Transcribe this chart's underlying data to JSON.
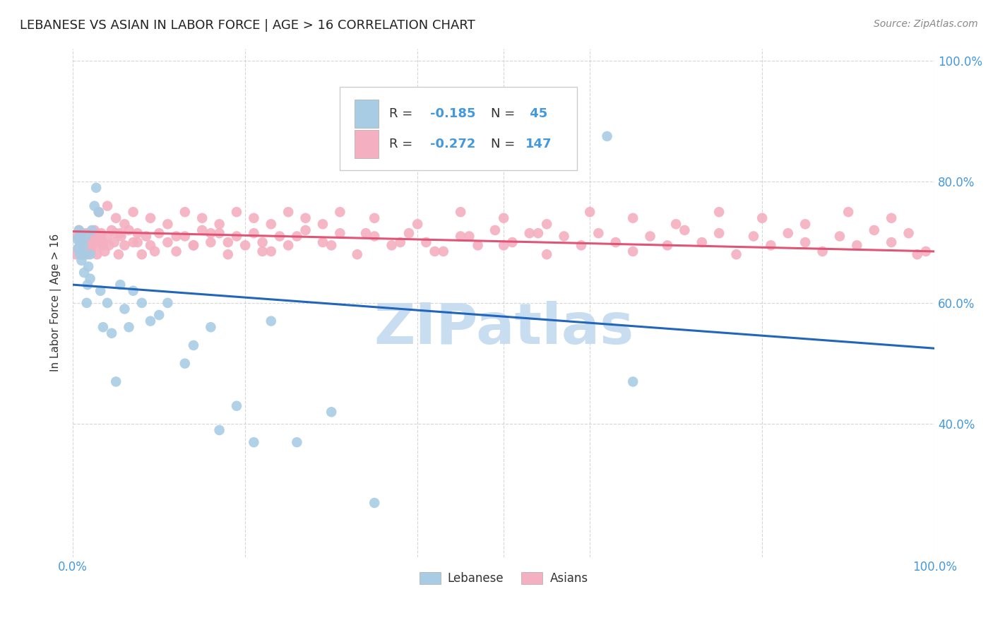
{
  "title": "LEBANESE VS ASIAN IN LABOR FORCE | AGE > 16 CORRELATION CHART",
  "source_text": "Source: ZipAtlas.com",
  "ylabel": "In Labor Force | Age > 16",
  "legend_label_blue": "Lebanese",
  "legend_label_pink": "Asians",
  "R_blue": -0.185,
  "N_blue": 45,
  "R_pink": -0.272,
  "N_pink": 147,
  "xlim": [
    0.0,
    1.0
  ],
  "ylim": [
    0.18,
    1.02
  ],
  "color_blue": "#a8cce4",
  "color_pink": "#f4afc0",
  "line_color_blue": "#2266bb",
  "line_color_pink": "#e05575",
  "background_color": "#ffffff",
  "plot_bg_color": "#ffffff",
  "grid_color": "#cccccc",
  "watermark_color": "#c8ddf0",
  "title_color": "#222222",
  "axis_label_color": "#4499dd",
  "legend_text_color": "#4499dd",
  "blue_line_y0": 0.63,
  "blue_line_y1": 0.525,
  "pink_line_y0": 0.718,
  "pink_line_y1": 0.685,
  "blue_x": [
    0.005,
    0.006,
    0.007,
    0.008,
    0.009,
    0.01,
    0.01,
    0.012,
    0.013,
    0.014,
    0.015,
    0.016,
    0.017,
    0.018,
    0.02,
    0.02,
    0.022,
    0.025,
    0.027,
    0.03,
    0.032,
    0.035,
    0.04,
    0.045,
    0.05,
    0.055,
    0.06,
    0.065,
    0.07,
    0.08,
    0.09,
    0.1,
    0.11,
    0.13,
    0.14,
    0.16,
    0.17,
    0.19,
    0.21,
    0.23,
    0.26,
    0.3,
    0.62,
    0.65,
    0.35
  ],
  "blue_y": [
    0.705,
    0.69,
    0.72,
    0.68,
    0.7,
    0.67,
    0.715,
    0.695,
    0.65,
    0.68,
    0.71,
    0.6,
    0.63,
    0.66,
    0.64,
    0.68,
    0.72,
    0.76,
    0.79,
    0.75,
    0.62,
    0.56,
    0.6,
    0.55,
    0.47,
    0.63,
    0.59,
    0.56,
    0.62,
    0.6,
    0.57,
    0.58,
    0.6,
    0.5,
    0.53,
    0.56,
    0.39,
    0.43,
    0.37,
    0.57,
    0.37,
    0.42,
    0.875,
    0.47,
    0.27
  ],
  "pink_x": [
    0.003,
    0.005,
    0.006,
    0.007,
    0.008,
    0.009,
    0.01,
    0.01,
    0.011,
    0.012,
    0.013,
    0.014,
    0.015,
    0.016,
    0.017,
    0.018,
    0.019,
    0.02,
    0.02,
    0.021,
    0.022,
    0.023,
    0.025,
    0.026,
    0.027,
    0.028,
    0.03,
    0.031,
    0.033,
    0.035,
    0.037,
    0.04,
    0.042,
    0.045,
    0.048,
    0.05,
    0.053,
    0.056,
    0.06,
    0.065,
    0.07,
    0.075,
    0.08,
    0.085,
    0.09,
    0.1,
    0.11,
    0.12,
    0.13,
    0.14,
    0.15,
    0.16,
    0.17,
    0.18,
    0.19,
    0.2,
    0.21,
    0.22,
    0.23,
    0.24,
    0.25,
    0.27,
    0.29,
    0.31,
    0.33,
    0.35,
    0.37,
    0.39,
    0.41,
    0.43,
    0.45,
    0.47,
    0.49,
    0.51,
    0.53,
    0.55,
    0.57,
    0.59,
    0.61,
    0.63,
    0.65,
    0.67,
    0.69,
    0.71,
    0.73,
    0.75,
    0.77,
    0.79,
    0.81,
    0.83,
    0.85,
    0.87,
    0.89,
    0.91,
    0.93,
    0.95,
    0.97,
    0.98,
    0.03,
    0.04,
    0.05,
    0.06,
    0.07,
    0.09,
    0.11,
    0.13,
    0.15,
    0.17,
    0.19,
    0.21,
    0.23,
    0.25,
    0.27,
    0.29,
    0.31,
    0.35,
    0.4,
    0.45,
    0.5,
    0.55,
    0.6,
    0.65,
    0.7,
    0.75,
    0.8,
    0.85,
    0.9,
    0.95,
    0.99,
    0.025,
    0.035,
    0.055,
    0.075,
    0.095,
    0.12,
    0.14,
    0.16,
    0.18,
    0.22,
    0.26,
    0.3,
    0.34,
    0.38,
    0.42,
    0.46,
    0.5,
    0.54
  ],
  "pink_y": [
    0.68,
    0.71,
    0.69,
    0.72,
    0.7,
    0.68,
    0.715,
    0.695,
    0.7,
    0.68,
    0.71,
    0.69,
    0.715,
    0.7,
    0.68,
    0.71,
    0.695,
    0.715,
    0.7,
    0.685,
    0.71,
    0.695,
    0.72,
    0.7,
    0.715,
    0.68,
    0.71,
    0.695,
    0.715,
    0.7,
    0.685,
    0.71,
    0.695,
    0.72,
    0.7,
    0.715,
    0.68,
    0.71,
    0.695,
    0.72,
    0.7,
    0.715,
    0.68,
    0.71,
    0.695,
    0.715,
    0.7,
    0.685,
    0.71,
    0.695,
    0.72,
    0.7,
    0.715,
    0.68,
    0.71,
    0.695,
    0.715,
    0.7,
    0.685,
    0.71,
    0.695,
    0.72,
    0.7,
    0.715,
    0.68,
    0.71,
    0.695,
    0.715,
    0.7,
    0.685,
    0.71,
    0.695,
    0.72,
    0.7,
    0.715,
    0.68,
    0.71,
    0.695,
    0.715,
    0.7,
    0.685,
    0.71,
    0.695,
    0.72,
    0.7,
    0.715,
    0.68,
    0.71,
    0.695,
    0.715,
    0.7,
    0.685,
    0.71,
    0.695,
    0.72,
    0.7,
    0.715,
    0.68,
    0.75,
    0.76,
    0.74,
    0.73,
    0.75,
    0.74,
    0.73,
    0.75,
    0.74,
    0.73,
    0.75,
    0.74,
    0.73,
    0.75,
    0.74,
    0.73,
    0.75,
    0.74,
    0.73,
    0.75,
    0.74,
    0.73,
    0.75,
    0.74,
    0.73,
    0.75,
    0.74,
    0.73,
    0.75,
    0.74,
    0.685,
    0.71,
    0.695,
    0.715,
    0.7,
    0.685,
    0.71,
    0.695,
    0.715,
    0.7,
    0.685,
    0.71,
    0.695,
    0.715,
    0.7,
    0.685,
    0.71,
    0.695,
    0.715
  ]
}
